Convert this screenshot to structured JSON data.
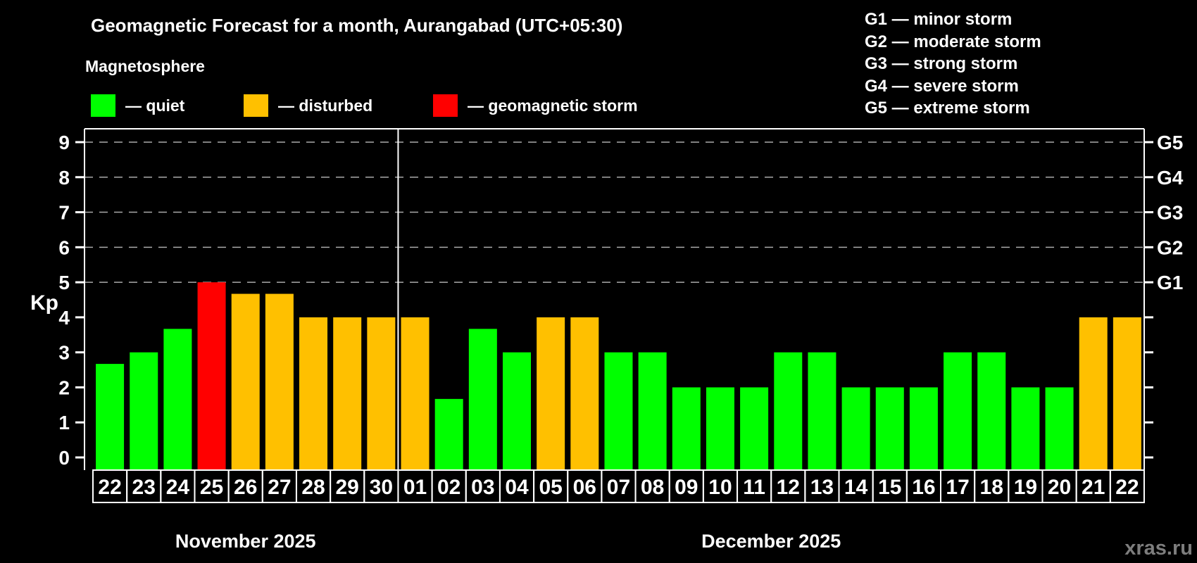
{
  "header": {
    "title": "Geomagnetic Forecast for a month, Aurangabad (UTC+05:30)",
    "subtitle": "Magnetosphere"
  },
  "legend": {
    "items": [
      {
        "status": "quiet",
        "label": "— quiet",
        "color": "#00ff00"
      },
      {
        "status": "disturbed",
        "label": "— disturbed",
        "color": "#ffc000"
      },
      {
        "status": "storm",
        "label": "— geomagnetic storm",
        "color": "#ff0000"
      }
    ]
  },
  "storm_scale": [
    "G1 — minor storm",
    "G2 — moderate storm",
    "G3 — strong storm",
    "G4 — severe storm",
    "G5 — extreme storm"
  ],
  "watermark": "xras.ru",
  "chart_data": {
    "type": "bar",
    "title": "Geomagnetic Forecast for a month, Aurangabad (UTC+05:30)",
    "ylabel": "Kp",
    "ylim": [
      0,
      9
    ],
    "yticks": [
      0,
      1,
      2,
      3,
      4,
      5,
      6,
      7,
      8,
      9
    ],
    "gridlines_at": [
      5,
      6,
      7,
      8,
      9
    ],
    "grid_on": true,
    "right_axis_labels": [
      {
        "text": "G1",
        "kp": 5
      },
      {
        "text": "G2",
        "kp": 6
      },
      {
        "text": "G3",
        "kp": 7
      },
      {
        "text": "G4",
        "kp": 8
      },
      {
        "text": "G5",
        "kp": 9
      }
    ],
    "months": [
      {
        "label": "November 2025",
        "days": 9
      },
      {
        "label": "December 2025",
        "days": 22
      }
    ],
    "status_colors": {
      "quiet": "#00ff00",
      "disturbed": "#ffc000",
      "storm": "#ff0000"
    },
    "grid_color": "#aaaaaa",
    "watermark_color": "#7d7d7d",
    "series": [
      {
        "date": "22",
        "kp": 2.67,
        "status": "quiet"
      },
      {
        "date": "23",
        "kp": 3,
        "status": "quiet"
      },
      {
        "date": "24",
        "kp": 3.67,
        "status": "quiet"
      },
      {
        "date": "25",
        "kp": 5,
        "status": "storm"
      },
      {
        "date": "26",
        "kp": 4.67,
        "status": "disturbed"
      },
      {
        "date": "27",
        "kp": 4.67,
        "status": "disturbed"
      },
      {
        "date": "28",
        "kp": 4,
        "status": "disturbed"
      },
      {
        "date": "29",
        "kp": 4,
        "status": "disturbed"
      },
      {
        "date": "30",
        "kp": 4,
        "status": "disturbed"
      },
      {
        "date": "01",
        "kp": 4,
        "status": "disturbed"
      },
      {
        "date": "02",
        "kp": 1.67,
        "status": "quiet"
      },
      {
        "date": "03",
        "kp": 3.67,
        "status": "quiet"
      },
      {
        "date": "04",
        "kp": 3,
        "status": "quiet"
      },
      {
        "date": "05",
        "kp": 4,
        "status": "disturbed"
      },
      {
        "date": "06",
        "kp": 4,
        "status": "disturbed"
      },
      {
        "date": "07",
        "kp": 3,
        "status": "quiet"
      },
      {
        "date": "08",
        "kp": 3,
        "status": "quiet"
      },
      {
        "date": "09",
        "kp": 2,
        "status": "quiet"
      },
      {
        "date": "10",
        "kp": 2,
        "status": "quiet"
      },
      {
        "date": "11",
        "kp": 2,
        "status": "quiet"
      },
      {
        "date": "12",
        "kp": 3,
        "status": "quiet"
      },
      {
        "date": "13",
        "kp": 3,
        "status": "quiet"
      },
      {
        "date": "14",
        "kp": 2,
        "status": "quiet"
      },
      {
        "date": "15",
        "kp": 2,
        "status": "quiet"
      },
      {
        "date": "16",
        "kp": 2,
        "status": "quiet"
      },
      {
        "date": "17",
        "kp": 3,
        "status": "quiet"
      },
      {
        "date": "18",
        "kp": 3,
        "status": "quiet"
      },
      {
        "date": "19",
        "kp": 2,
        "status": "quiet"
      },
      {
        "date": "20",
        "kp": 2,
        "status": "quiet"
      },
      {
        "date": "21",
        "kp": 4,
        "status": "disturbed"
      },
      {
        "date": "22",
        "kp": 4,
        "status": "disturbed"
      }
    ]
  }
}
